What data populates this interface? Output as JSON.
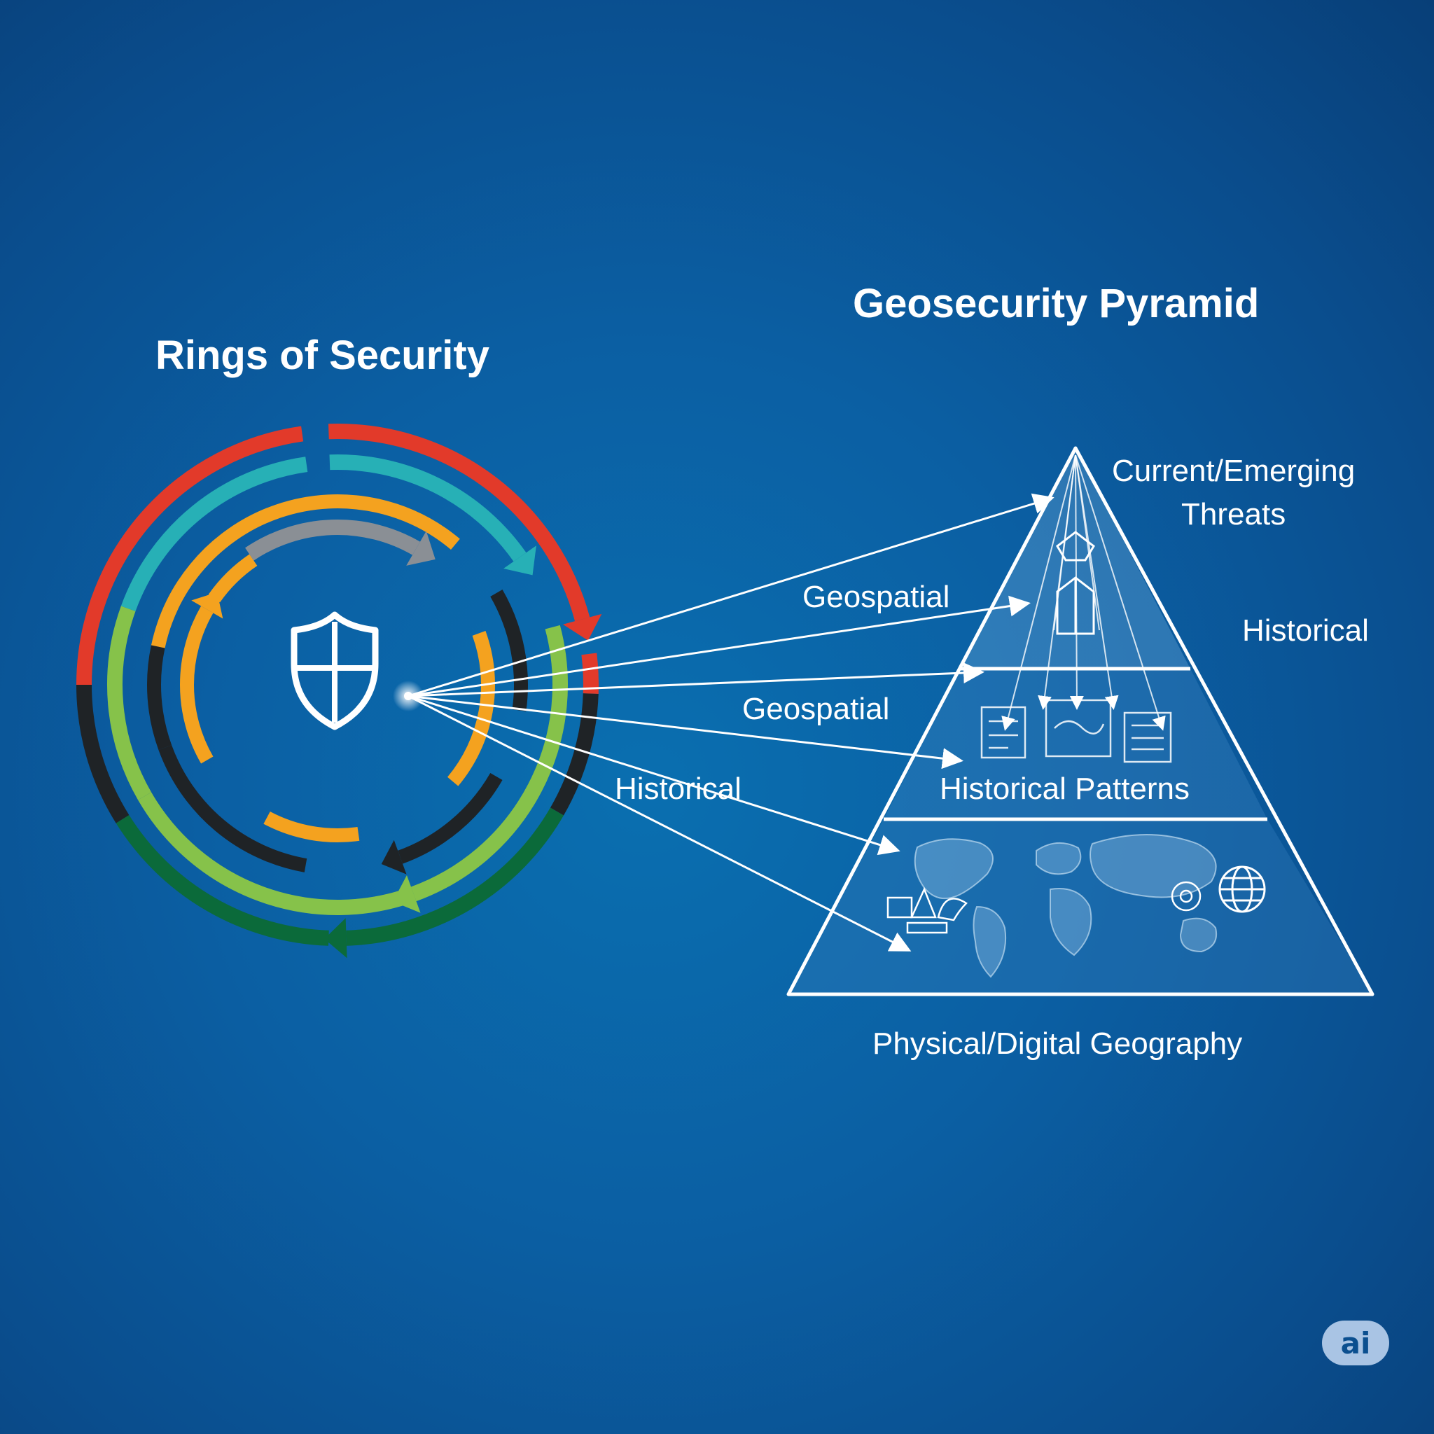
{
  "rings": {
    "title": "Rings of Security",
    "colors": {
      "red": "#e23a2a",
      "teal": "#27b0b6",
      "orange": "#f4a21f",
      "gray": "#8a8f95",
      "black": "#1f2326",
      "lime": "#86c24a",
      "green": "#0b6a3a"
    },
    "center_icon": "shield-icon"
  },
  "connectors": {
    "labels": [
      "Geospatial",
      "Geospatial",
      "Historical"
    ]
  },
  "pyramid": {
    "title": "Geosecurity Pyramid",
    "top_label": "Current/Emerging\nThreats",
    "side_label": "Historical",
    "middle_label": "Historical Patterns",
    "bottom_label": "Physical/Digital Geography",
    "icons": [
      "building-icon",
      "document-icon",
      "world-map-icon",
      "globe-icon"
    ]
  },
  "badge": {
    "text": "ai"
  }
}
